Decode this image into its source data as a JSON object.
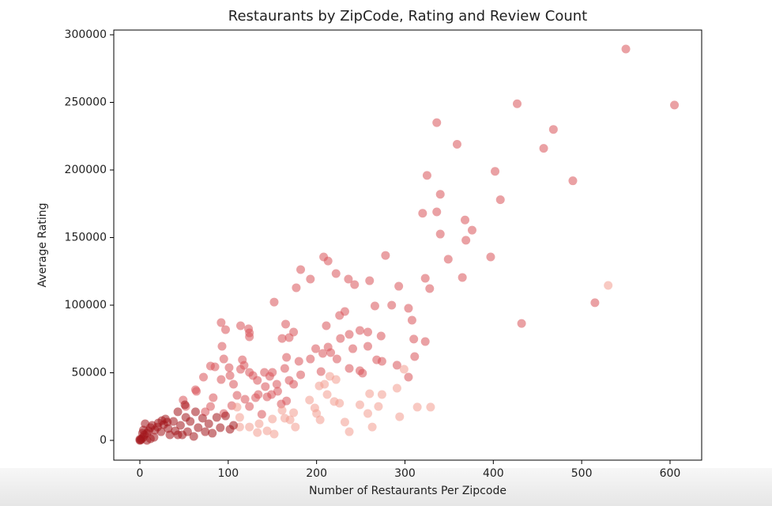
{
  "chart_data": {
    "type": "scatter",
    "title": "Restaurants by ZipCode, Rating and Review Count",
    "x_label": "Number of Restaurants Per Zipcode",
    "y_label": "Average Rating",
    "xlim": [
      -29.5,
      635.8
    ],
    "ylim": [
      -14620,
      303510
    ],
    "xticks": [
      0,
      100,
      200,
      300,
      400,
      500,
      600
    ],
    "yticks": [
      0,
      50000,
      100000,
      150000,
      200000,
      250000,
      300000
    ],
    "grid": false,
    "series": [
      {
        "color": "#d9545a",
        "x": [
          550,
          605,
          427,
          336,
          468,
          359,
          457,
          402,
          325,
          490,
          340,
          408,
          320,
          336,
          368,
          376,
          340,
          369,
          349,
          397,
          365,
          515,
          432,
          323,
          328,
          278,
          208,
          213,
          222,
          182,
          193,
          236,
          243,
          260,
          293,
          177,
          152,
          266,
          285,
          304,
          308,
          232,
          226,
          92,
          97,
          114,
          123,
          124,
          124,
          165,
          174,
          161,
          169,
          211,
          227,
          237,
          249,
          258,
          273,
          310,
          323,
          258,
          93,
          199,
          213,
          216,
          207,
          193,
          180,
          166,
          241,
          223,
          268,
          274,
          237,
          249,
          252,
          291,
          304,
          311,
          205,
          80,
          85,
          95,
          101,
          102,
          106,
          114,
          116,
          118,
          124,
          128,
          133,
          141,
          147,
          150,
          155,
          156,
          149,
          144,
          142,
          134,
          164,
          169,
          174,
          182,
          166,
          160,
          138,
          131,
          124,
          119,
          110,
          104,
          95,
          83,
          80,
          74,
          64,
          49,
          52,
          72,
          63,
          92
        ],
        "values": [
          289500,
          248000,
          249000,
          235000,
          230000,
          219000,
          216000,
          199000,
          196000,
          192000,
          182000,
          178000,
          168000,
          169000,
          163000,
          155500,
          152600,
          148000,
          134000,
          135700,
          120500,
          101800,
          86500,
          119900,
          112300,
          136800,
          135700,
          132700,
          123400,
          126300,
          119300,
          119300,
          115200,
          118100,
          114000,
          112900,
          102300,
          99400,
          100000,
          97700,
          88900,
          95300,
          92400,
          87100,
          81900,
          84800,
          82500,
          79500,
          76600,
          86000,
          80100,
          75400,
          76000,
          84800,
          75400,
          78400,
          81300,
          80100,
          77200,
          74900,
          73100,
          69600,
          69600,
          67800,
          69000,
          64900,
          64300,
          60200,
          58500,
          61400,
          67800,
          60200,
          59600,
          58500,
          53200,
          51500,
          49700,
          55600,
          46800,
          62000,
          50900,
          55000,
          54400,
          60200,
          53800,
          47950,
          41500,
          52600,
          59600,
          55500,
          50300,
          47950,
          44400,
          50300,
          47400,
          50300,
          41500,
          36300,
          33900,
          32200,
          39800,
          33900,
          53200,
          44400,
          41500,
          48500,
          29200,
          26900,
          19300,
          31600,
          25100,
          30400,
          33300,
          25700,
          19900,
          31600,
          25100,
          21100,
          36300,
          29800,
          25100,
          46800,
          37400,
          45000
        ]
      },
      {
        "color": "#f39c8f",
        "x": [
          530,
          192,
          198,
          204,
          200,
          212,
          220,
          226,
          232,
          237,
          249,
          258,
          260,
          263,
          270,
          274,
          291,
          299,
          314,
          329,
          294,
          203,
          209,
          215,
          222,
          161,
          164,
          170,
          174,
          176,
          152,
          144,
          135,
          133,
          124,
          113,
          113,
          110,
          150
        ],
        "values": [
          114600,
          29800,
          24000,
          15200,
          19900,
          33900,
          28700,
          27500,
          13500,
          6400,
          26300,
          19900,
          34500,
          9900,
          25100,
          33900,
          38600,
          52600,
          24600,
          24600,
          17500,
          40300,
          41500,
          47400,
          45000,
          22200,
          16400,
          15200,
          20500,
          9900,
          4700,
          7000,
          12300,
          5800,
          9900,
          9900,
          17000,
          24600,
          15800
        ]
      },
      {
        "color": "#a3161c",
        "x": [
          0,
          2,
          4,
          5,
          8,
          10,
          12,
          14,
          17,
          20,
          21,
          24,
          27,
          29,
          32,
          34,
          38,
          40,
          43,
          46,
          48,
          52,
          54,
          57,
          61,
          63,
          66,
          71,
          74,
          78,
          82,
          87,
          91,
          97,
          102,
          106,
          4,
          6,
          3,
          8,
          12,
          16,
          25,
          31,
          43,
          51,
          0,
          1
        ],
        "values": [
          0,
          1200,
          2300,
          4100,
          5300,
          7000,
          9400,
          11100,
          7600,
          9900,
          12900,
          6400,
          11700,
          15800,
          8800,
          4100,
          14000,
          7000,
          21100,
          11100,
          4100,
          17000,
          6400,
          14000,
          2900,
          21100,
          9400,
          16400,
          6400,
          12300,
          5300,
          17000,
          9400,
          18100,
          8200,
          11100,
          7600,
          12300,
          5300,
          0,
          1200,
          2300,
          14600,
          13500,
          4100,
          26300,
          800,
          300
        ]
      }
    ]
  }
}
